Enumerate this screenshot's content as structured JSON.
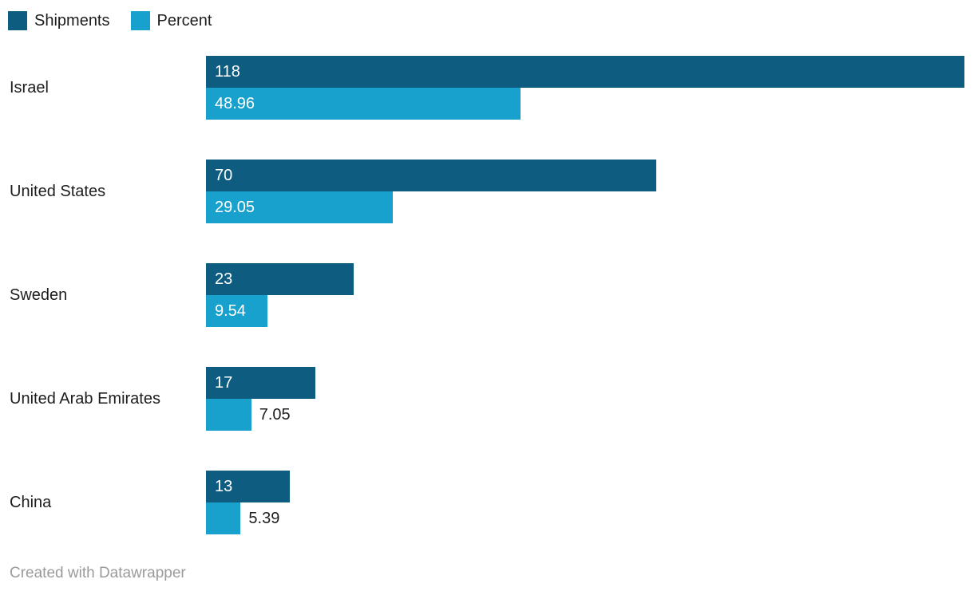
{
  "legend": {
    "position": "top-left",
    "items": [
      {
        "label": "Shipments",
        "color": "#0e5c80"
      },
      {
        "label": "Percent",
        "color": "#18a1cd"
      }
    ]
  },
  "chart_data": {
    "type": "bar",
    "orientation": "horizontal",
    "title": "",
    "xlabel": "",
    "ylabel": "",
    "grid": false,
    "axis_visible": false,
    "xmax": 118,
    "legend_position": "top-left",
    "categories": [
      "Israel",
      "United States",
      "Sweden",
      "United Arab Emirates",
      "China"
    ],
    "series": [
      {
        "name": "Shipments",
        "color": "#0e5c80",
        "values": [
          118,
          70,
          23,
          17,
          13
        ],
        "labels": [
          "118",
          "70",
          "23",
          "17",
          "13"
        ]
      },
      {
        "name": "Percent",
        "color": "#18a1cd",
        "values": [
          48.96,
          29.05,
          9.54,
          7.05,
          5.39
        ],
        "labels": [
          "48.96",
          "29.05",
          "9.54",
          "7.05",
          "5.39"
        ]
      }
    ],
    "value_label_style": "inside bar start, white; outside in dark text when bar too short"
  },
  "footer": {
    "attribution": "Created with Datawrapper"
  },
  "colors": {
    "background": "#ffffff",
    "dark_blue": "#0e5c80",
    "light_blue": "#18a1cd",
    "text": "#1d1d1d",
    "label_on_bar": "#ffffff",
    "muted_text": "#9b9b9b"
  }
}
